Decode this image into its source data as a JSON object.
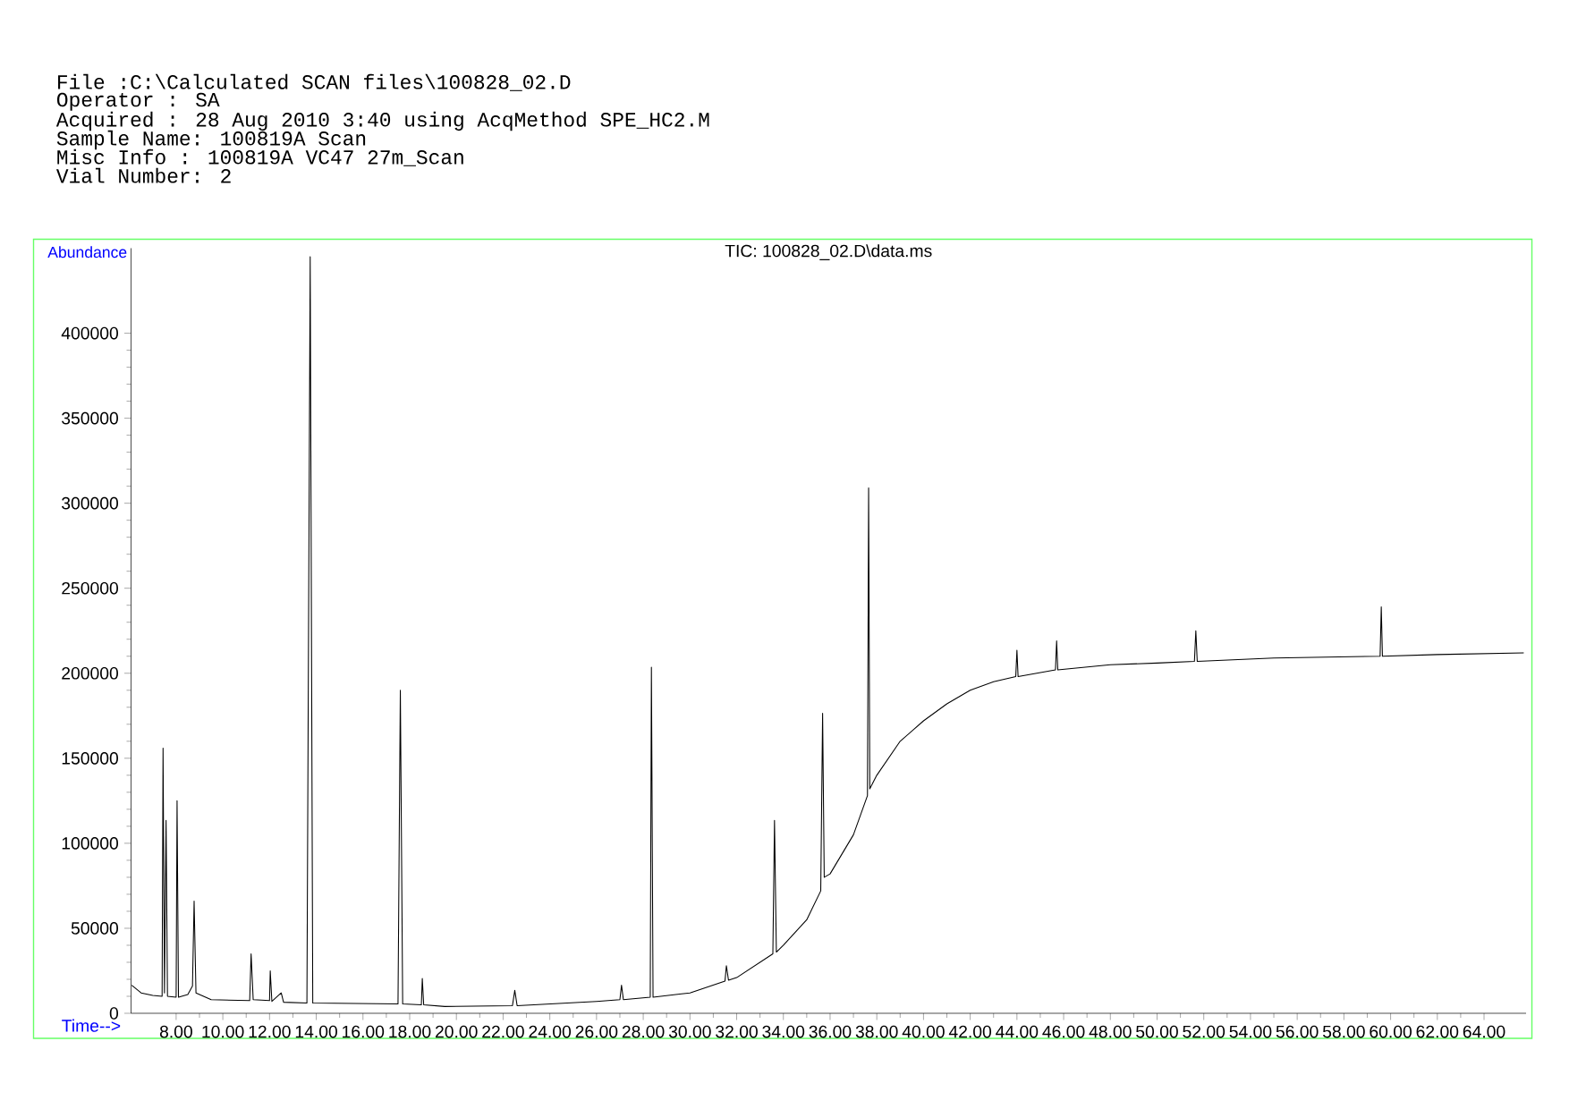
{
  "chart_data": {
    "type": "line",
    "title": "TIC: 100828_02.D\\data.ms",
    "xlabel": "Time-->",
    "ylabel": "Abundance",
    "color": "#000000",
    "annotations": [
      "File :C:\\Calculated SCAN files\\100828_02.D",
      "Operator : SA",
      "Acquired : 28 Aug 2010 3:40 using AcqMethod SPE_HC2.M",
      "Sample Name: 100819A Scan",
      "Misc Info : 100819A VC47 27m_Scan",
      "Vial Number: 2"
    ],
    "xlim": [
      6.07,
      65.8
    ],
    "ylim": [
      0,
      450000
    ],
    "xticks": [
      {
        "value": 8,
        "label": "8.00"
      },
      {
        "value": 10,
        "label": "10.00"
      },
      {
        "value": 12,
        "label": "12.00"
      },
      {
        "value": 14,
        "label": "14.00"
      },
      {
        "value": 16,
        "label": "16.00"
      },
      {
        "value": 18,
        "label": "18.00"
      },
      {
        "value": 20,
        "label": "20.00"
      },
      {
        "value": 22,
        "label": "22.00"
      },
      {
        "value": 24,
        "label": "24.00"
      },
      {
        "value": 26,
        "label": "26.00"
      },
      {
        "value": 28,
        "label": "28.00"
      },
      {
        "value": 30,
        "label": "30.00"
      },
      {
        "value": 32,
        "label": "32.00"
      },
      {
        "value": 34,
        "label": "34.00"
      },
      {
        "value": 36,
        "label": "36.00"
      },
      {
        "value": 38,
        "label": "38.00"
      },
      {
        "value": 40,
        "label": "40.00"
      },
      {
        "value": 42,
        "label": "42.00"
      },
      {
        "value": 44,
        "label": "44.00"
      },
      {
        "value": 46,
        "label": "46.00"
      },
      {
        "value": 48,
        "label": "48.00"
      },
      {
        "value": 50,
        "label": "50.00"
      },
      {
        "value": 52,
        "label": "52.00"
      },
      {
        "value": 54,
        "label": "54.00"
      },
      {
        "value": 56,
        "label": "56.00"
      },
      {
        "value": 58,
        "label": "58.00"
      },
      {
        "value": 60,
        "label": "60.00"
      },
      {
        "value": 62,
        "label": "62.00"
      },
      {
        "value": 64,
        "label": "64.00"
      }
    ],
    "yticks": [
      0,
      50000,
      100000,
      150000,
      200000,
      250000,
      300000,
      350000,
      400000
    ],
    "x": [
      6.1,
      6.5,
      7.0,
      7.4,
      7.44,
      7.5,
      7.57,
      7.63,
      8.0,
      8.04,
      8.1,
      8.5,
      8.7,
      8.77,
      8.85,
      9.5,
      11.15,
      11.21,
      11.3,
      12.0,
      12.03,
      12.1,
      12.5,
      12.6,
      13.6,
      13.74,
      13.85,
      17.5,
      17.6,
      17.7,
      18.5,
      18.54,
      18.6,
      19.5,
      22.4,
      22.5,
      22.6,
      26.0,
      27.0,
      27.07,
      27.15,
      28.3,
      28.35,
      28.42,
      30.0,
      31.5,
      31.56,
      31.65,
      32.0,
      33.55,
      33.62,
      33.7,
      34.0,
      35.0,
      35.6,
      35.68,
      35.75,
      36.0,
      37.0,
      37.6,
      37.65,
      37.7,
      38.0,
      39.0,
      40.0,
      41.0,
      42.0,
      43.0,
      43.95,
      44.0,
      44.05,
      45.65,
      45.7,
      45.75,
      48.0,
      50.0,
      51.6,
      51.66,
      51.72,
      55.0,
      59.55,
      59.6,
      59.65,
      62.0,
      65.7
    ],
    "values": [
      16500,
      12000,
      10500,
      10000,
      156000,
      12000,
      113500,
      10000,
      9500,
      125000,
      9500,
      11000,
      16000,
      66000,
      12000,
      8000,
      7500,
      35000,
      8000,
      7500,
      25000,
      7000,
      12000,
      6500,
      6000,
      445000,
      6000,
      5500,
      190000,
      5500,
      5000,
      20500,
      5000,
      4000,
      4500,
      13500,
      4500,
      7000,
      8000,
      16500,
      8000,
      9500,
      203500,
      9500,
      12000,
      19000,
      28000,
      19500,
      21000,
      35000,
      113500,
      36000,
      40000,
      55000,
      72000,
      176500,
      80000,
      82000,
      105000,
      128000,
      309000,
      132000,
      140000,
      160000,
      172000,
      182000,
      190000,
      195000,
      198000,
      213500,
      198000,
      202000,
      219000,
      202000,
      205000,
      206000,
      207000,
      225000,
      207000,
      209000,
      210000,
      239000,
      210000,
      211000,
      212000
    ]
  }
}
